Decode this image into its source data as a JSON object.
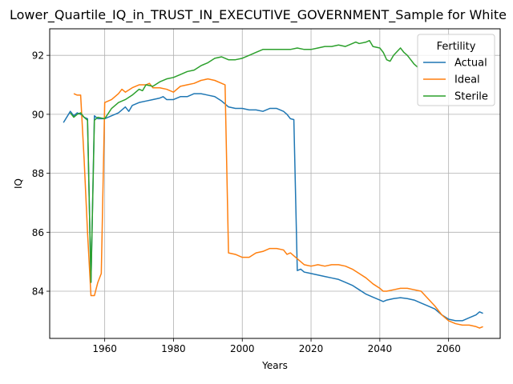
{
  "chart_data": {
    "type": "line",
    "title": "Lower_Quartile_IQ_in_TRUST_IN_EXECUTIVE_GOVERNMENT_Sample for White",
    "xlabel": "Years",
    "ylabel": "IQ",
    "xlim": [
      1944,
      2075
    ],
    "ylim": [
      82.4,
      92.9
    ],
    "xticks": [
      1960,
      1980,
      2000,
      2020,
      2040,
      2060
    ],
    "yticks": [
      84,
      86,
      88,
      90,
      92
    ],
    "grid": true,
    "legend": {
      "title": "Fertility",
      "placement": "upper right"
    },
    "series": [
      {
        "name": "Actual",
        "color": "#1f77b4",
        "points": [
          [
            1948,
            89.72
          ],
          [
            1950,
            90.1
          ],
          [
            1951,
            89.95
          ],
          [
            1952,
            90.05
          ],
          [
            1953,
            90.0
          ],
          [
            1954,
            89.9
          ],
          [
            1955,
            89.85
          ],
          [
            1956,
            84.3
          ],
          [
            1957,
            89.95
          ],
          [
            1958,
            89.85
          ],
          [
            1960,
            89.85
          ],
          [
            1962,
            89.95
          ],
          [
            1964,
            90.05
          ],
          [
            1966,
            90.25
          ],
          [
            1967,
            90.1
          ],
          [
            1968,
            90.3
          ],
          [
            1970,
            90.4
          ],
          [
            1972,
            90.45
          ],
          [
            1974,
            90.5
          ],
          [
            1976,
            90.55
          ],
          [
            1977,
            90.6
          ],
          [
            1978,
            90.5
          ],
          [
            1980,
            90.5
          ],
          [
            1982,
            90.6
          ],
          [
            1984,
            90.6
          ],
          [
            1986,
            90.7
          ],
          [
            1988,
            90.7
          ],
          [
            1990,
            90.65
          ],
          [
            1992,
            90.6
          ],
          [
            1994,
            90.45
          ],
          [
            1996,
            90.25
          ],
          [
            1998,
            90.2
          ],
          [
            2000,
            90.2
          ],
          [
            2002,
            90.15
          ],
          [
            2004,
            90.15
          ],
          [
            2006,
            90.1
          ],
          [
            2008,
            90.2
          ],
          [
            2010,
            90.2
          ],
          [
            2012,
            90.1
          ],
          [
            2013,
            90.0
          ],
          [
            2014,
            89.85
          ],
          [
            2015,
            89.82
          ],
          [
            2016,
            84.7
          ],
          [
            2017,
            84.75
          ],
          [
            2018,
            84.65
          ],
          [
            2020,
            84.6
          ],
          [
            2022,
            84.55
          ],
          [
            2024,
            84.5
          ],
          [
            2026,
            84.45
          ],
          [
            2028,
            84.4
          ],
          [
            2030,
            84.3
          ],
          [
            2032,
            84.2
          ],
          [
            2034,
            84.05
          ],
          [
            2036,
            83.9
          ],
          [
            2038,
            83.8
          ],
          [
            2040,
            83.7
          ],
          [
            2041,
            83.65
          ],
          [
            2042,
            83.7
          ],
          [
            2044,
            83.75
          ],
          [
            2046,
            83.78
          ],
          [
            2048,
            83.75
          ],
          [
            2050,
            83.7
          ],
          [
            2052,
            83.6
          ],
          [
            2054,
            83.5
          ],
          [
            2056,
            83.4
          ],
          [
            2058,
            83.2
          ],
          [
            2060,
            83.05
          ],
          [
            2062,
            83.0
          ],
          [
            2064,
            83.0
          ],
          [
            2066,
            83.1
          ],
          [
            2068,
            83.2
          ],
          [
            2069,
            83.3
          ],
          [
            2070,
            83.25
          ]
        ]
      },
      {
        "name": "Ideal",
        "color": "#ff7f0e",
        "points": [
          [
            1951,
            90.7
          ],
          [
            1952,
            90.65
          ],
          [
            1953,
            90.65
          ],
          [
            1954,
            88.5
          ],
          [
            1955,
            86.0
          ],
          [
            1956,
            83.85
          ],
          [
            1957,
            83.85
          ],
          [
            1958,
            84.3
          ],
          [
            1959,
            84.6
          ],
          [
            1960,
            90.4
          ],
          [
            1962,
            90.5
          ],
          [
            1964,
            90.7
          ],
          [
            1965,
            90.85
          ],
          [
            1966,
            90.75
          ],
          [
            1968,
            90.9
          ],
          [
            1970,
            91.0
          ],
          [
            1972,
            91.0
          ],
          [
            1973,
            91.05
          ],
          [
            1974,
            90.9
          ],
          [
            1976,
            90.9
          ],
          [
            1978,
            90.85
          ],
          [
            1980,
            90.75
          ],
          [
            1982,
            90.95
          ],
          [
            1984,
            91.0
          ],
          [
            1986,
            91.05
          ],
          [
            1988,
            91.15
          ],
          [
            1990,
            91.2
          ],
          [
            1992,
            91.15
          ],
          [
            1994,
            91.05
          ],
          [
            1995,
            91.0
          ],
          [
            1996,
            85.3
          ],
          [
            1998,
            85.25
          ],
          [
            2000,
            85.15
          ],
          [
            2002,
            85.15
          ],
          [
            2004,
            85.3
          ],
          [
            2006,
            85.35
          ],
          [
            2008,
            85.45
          ],
          [
            2010,
            85.45
          ],
          [
            2012,
            85.4
          ],
          [
            2013,
            85.25
          ],
          [
            2014,
            85.3
          ],
          [
            2016,
            85.1
          ],
          [
            2018,
            84.9
          ],
          [
            2020,
            84.85
          ],
          [
            2022,
            84.9
          ],
          [
            2024,
            84.85
          ],
          [
            2026,
            84.9
          ],
          [
            2028,
            84.9
          ],
          [
            2030,
            84.85
          ],
          [
            2032,
            84.75
          ],
          [
            2034,
            84.6
          ],
          [
            2036,
            84.45
          ],
          [
            2038,
            84.25
          ],
          [
            2040,
            84.1
          ],
          [
            2041,
            84.0
          ],
          [
            2042,
            84.0
          ],
          [
            2044,
            84.05
          ],
          [
            2046,
            84.1
          ],
          [
            2048,
            84.1
          ],
          [
            2050,
            84.05
          ],
          [
            2052,
            84.0
          ],
          [
            2054,
            83.75
          ],
          [
            2056,
            83.5
          ],
          [
            2058,
            83.2
          ],
          [
            2060,
            83.0
          ],
          [
            2062,
            82.9
          ],
          [
            2064,
            82.85
          ],
          [
            2066,
            82.85
          ],
          [
            2068,
            82.8
          ],
          [
            2069,
            82.75
          ],
          [
            2070,
            82.8
          ]
        ]
      },
      {
        "name": "Sterile",
        "color": "#2ca02c",
        "points": [
          [
            1950,
            90.05
          ],
          [
            1951,
            89.9
          ],
          [
            1952,
            90.0
          ],
          [
            1953,
            90.05
          ],
          [
            1954,
            89.9
          ],
          [
            1955,
            89.8
          ],
          [
            1956,
            84.3
          ],
          [
            1957,
            89.8
          ],
          [
            1958,
            89.9
          ],
          [
            1960,
            89.85
          ],
          [
            1962,
            90.2
          ],
          [
            1964,
            90.4
          ],
          [
            1966,
            90.5
          ],
          [
            1968,
            90.65
          ],
          [
            1970,
            90.85
          ],
          [
            1971,
            90.8
          ],
          [
            1972,
            91.0
          ],
          [
            1974,
            90.95
          ],
          [
            1976,
            91.1
          ],
          [
            1978,
            91.2
          ],
          [
            1980,
            91.25
          ],
          [
            1982,
            91.35
          ],
          [
            1984,
            91.45
          ],
          [
            1986,
            91.5
          ],
          [
            1988,
            91.65
          ],
          [
            1990,
            91.75
          ],
          [
            1992,
            91.9
          ],
          [
            1994,
            91.95
          ],
          [
            1996,
            91.85
          ],
          [
            1998,
            91.85
          ],
          [
            2000,
            91.9
          ],
          [
            2002,
            92.0
          ],
          [
            2004,
            92.1
          ],
          [
            2006,
            92.2
          ],
          [
            2008,
            92.2
          ],
          [
            2010,
            92.2
          ],
          [
            2012,
            92.2
          ],
          [
            2014,
            92.2
          ],
          [
            2016,
            92.25
          ],
          [
            2018,
            92.2
          ],
          [
            2020,
            92.2
          ],
          [
            2022,
            92.25
          ],
          [
            2024,
            92.3
          ],
          [
            2026,
            92.3
          ],
          [
            2028,
            92.35
          ],
          [
            2030,
            92.3
          ],
          [
            2032,
            92.4
          ],
          [
            2033,
            92.45
          ],
          [
            2034,
            92.4
          ],
          [
            2036,
            92.45
          ],
          [
            2037,
            92.5
          ],
          [
            2038,
            92.3
          ],
          [
            2040,
            92.25
          ],
          [
            2041,
            92.1
          ],
          [
            2042,
            91.85
          ],
          [
            2043,
            91.8
          ],
          [
            2044,
            92.0
          ],
          [
            2046,
            92.25
          ],
          [
            2047,
            92.1
          ],
          [
            2048,
            92.0
          ],
          [
            2050,
            91.7
          ],
          [
            2051,
            91.6
          ]
        ]
      }
    ]
  }
}
